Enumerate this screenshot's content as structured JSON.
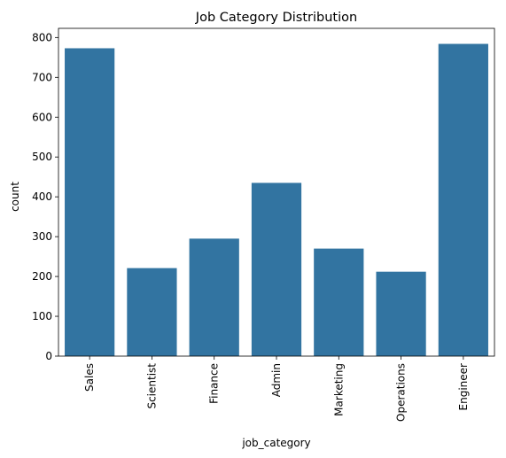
{
  "chart_data": {
    "type": "bar",
    "title": "Job Category Distribution",
    "xlabel": "job_category",
    "ylabel": "count",
    "categories": [
      "Sales",
      "Scientist",
      "Finance",
      "Admin",
      "Marketing",
      "Operations",
      "Engineer"
    ],
    "values": [
      773,
      221,
      295,
      435,
      270,
      212,
      784
    ],
    "ylim": [
      0,
      823
    ],
    "yticks": [
      0,
      100,
      200,
      300,
      400,
      500,
      600,
      700,
      800
    ],
    "grid": false,
    "bar_color": "#3274a1"
  }
}
